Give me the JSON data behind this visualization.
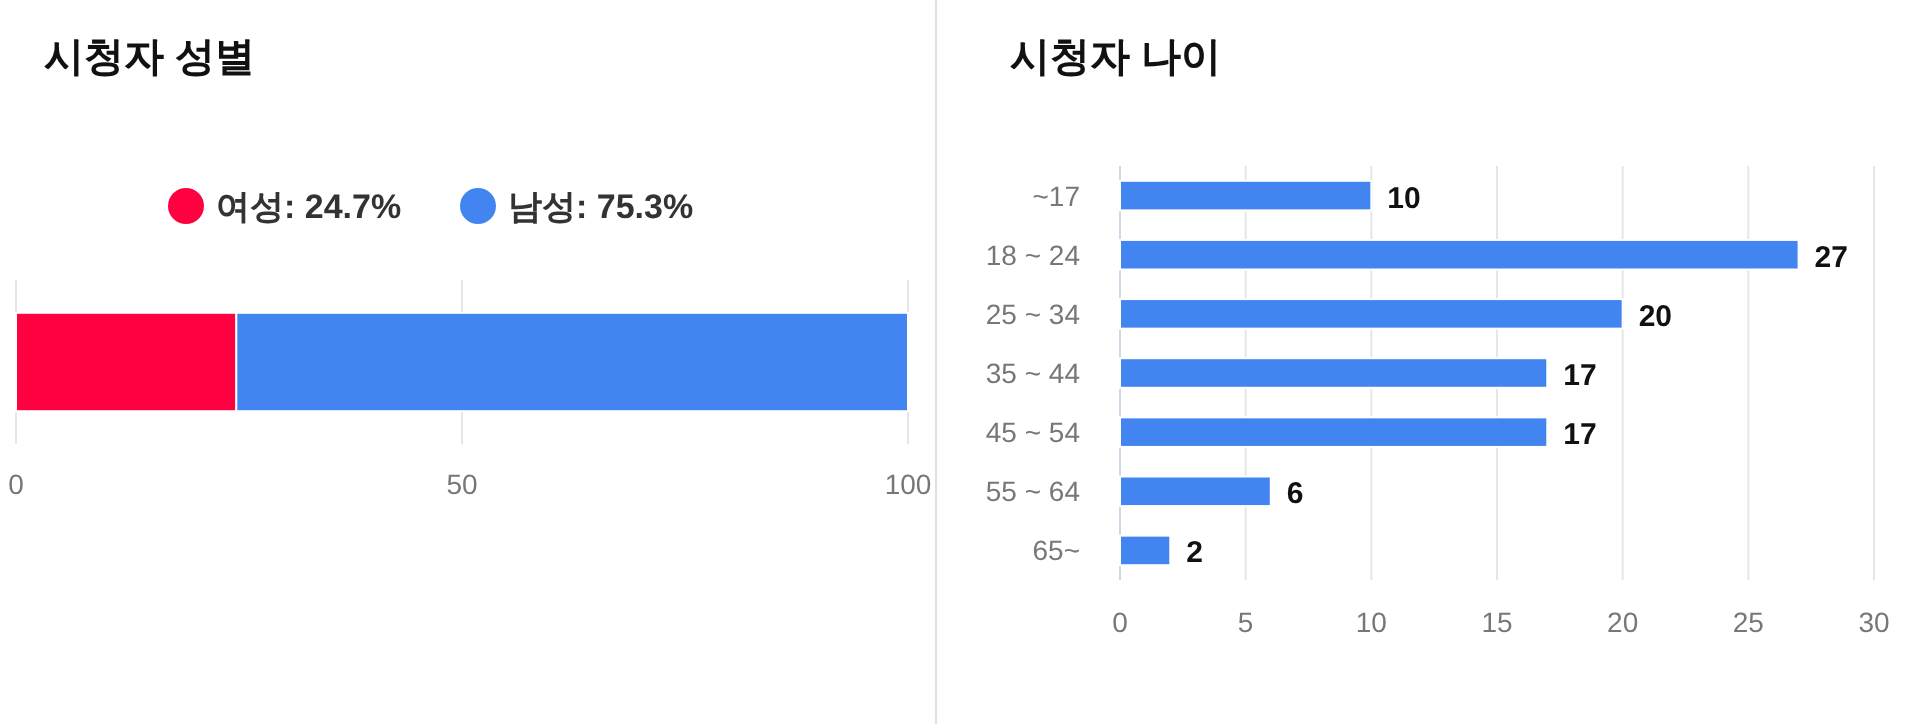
{
  "chart_data": [
    {
      "type": "bar",
      "title": "시청자 성별",
      "orientation": "horizontal",
      "stacked": true,
      "categories": [
        null
      ],
      "series": [
        {
          "name": "여성: 24.7%",
          "color": "#ff0040",
          "values": [
            24.7
          ]
        },
        {
          "name": "남성: 75.3%",
          "color": "#4285f0",
          "values": [
            75.3
          ]
        }
      ],
      "xlim": [
        0,
        100
      ],
      "xticks": [
        0,
        50,
        100
      ],
      "grid": "x",
      "legend": "top"
    },
    {
      "type": "bar",
      "title": "시청자 나이",
      "orientation": "horizontal",
      "categories": [
        "~17",
        "18 ~ 24",
        "25 ~ 34",
        "35 ~ 44",
        "45 ~ 54",
        "55 ~ 64",
        "65~"
      ],
      "series": [
        {
          "color": "#4285f0",
          "values": [
            10,
            27,
            20,
            17,
            17,
            6,
            2
          ]
        }
      ],
      "xlim": [
        0,
        30
      ],
      "xticks": [
        0,
        5,
        10,
        15,
        20,
        25,
        30
      ],
      "grid": "x",
      "data_labels": true
    }
  ]
}
